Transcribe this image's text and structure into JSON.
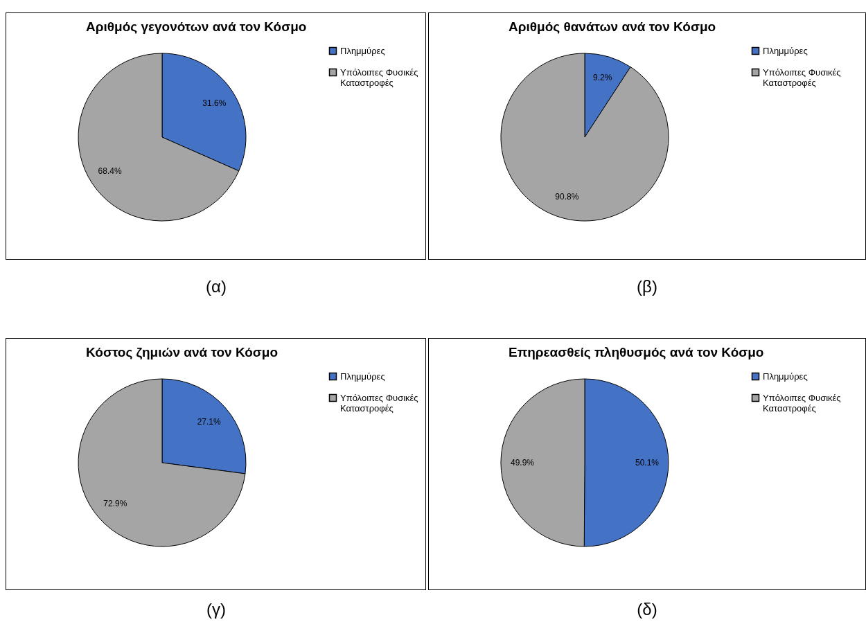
{
  "chart_data": [
    {
      "type": "pie",
      "title": "Αριθμός γεγονότων ανά τον Κόσμο",
      "categories": [
        "Πλημμύρες",
        "Υπόλοιπες Φυσικές Καταστροφές"
      ],
      "values": [
        31.6,
        68.4
      ],
      "value_labels": [
        "31.6%",
        "68.4%"
      ],
      "colors": [
        "#4472c4",
        "#a5a5a5"
      ],
      "legend": "right",
      "annotations": [
        "(α)"
      ]
    },
    {
      "type": "pie",
      "title": "Αριθμός θανάτων ανά τον Κόσμο",
      "categories": [
        "Πλημμύρες",
        "Υπόλοιπες Φυσικές Καταστροφές"
      ],
      "values": [
        9.2,
        90.8
      ],
      "value_labels": [
        "9.2%",
        "90.8%"
      ],
      "colors": [
        "#4472c4",
        "#a5a5a5"
      ],
      "legend": "right",
      "annotations": [
        "(β)"
      ]
    },
    {
      "type": "pie",
      "title": "Κόστος ζημιών ανά τον Κόσμο",
      "categories": [
        "Πλημμύρες",
        "Υπόλοιπες Φυσικές Καταστροφές"
      ],
      "values": [
        27.1,
        72.9
      ],
      "value_labels": [
        "27.1%",
        "72.9%"
      ],
      "colors": [
        "#4472c4",
        "#a5a5a5"
      ],
      "legend": "right",
      "annotations": [
        "(γ)"
      ]
    },
    {
      "type": "pie",
      "title": "Επηρεασθείς πληθυσμός ανά τον Κόσμο",
      "categories": [
        "Πλημμύρες",
        "Υπόλοιπες Φυσικές Καταστροφές"
      ],
      "values": [
        50.1,
        49.9
      ],
      "value_labels": [
        "50.1%",
        "49.9%"
      ],
      "colors": [
        "#4472c4",
        "#a5a5a5"
      ],
      "legend": "right",
      "annotations": [
        "(δ)"
      ]
    }
  ]
}
